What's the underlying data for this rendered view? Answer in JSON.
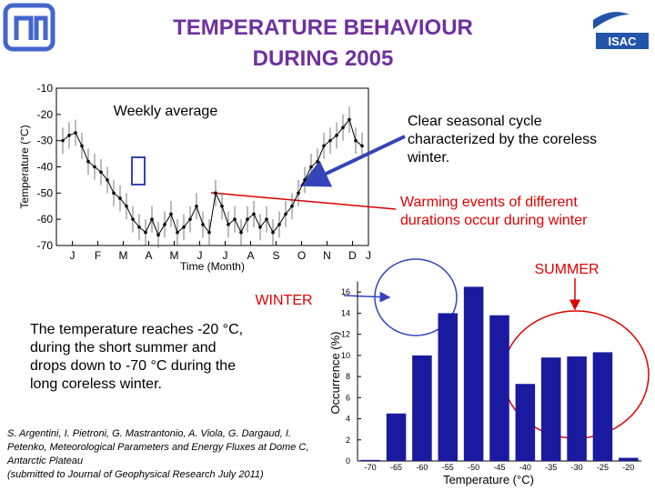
{
  "title": [
    "TEMPERATURE BEHAVIOUR",
    "DURING 2005"
  ],
  "logo_text": "ISAC",
  "note_cycle": [
    "Clear seasonal cycle",
    "characterized by the coreless",
    "winter."
  ],
  "note_warming": [
    "Warming events of different",
    "durations occur during winter"
  ],
  "label_summer": "SUMMER",
  "label_winter": "WINTER",
  "paragraph": [
    "The temperature reaches -20 °C,",
    "during the short summer and",
    "drops down to -70 °C during the",
    "long coreless winter."
  ],
  "citation": [
    "S. Argentini, I. Pietroni, G. Mastrantonio, A. Viola, G. Dargaud, I.",
    "Petenko, Meteorological Parameters and Energy Fluxes at Dome C,",
    "Antarctic Plateau",
    "(submitted to Journal of Geophysical Research July 2011)"
  ],
  "chart_data": [
    {
      "type": "line",
      "y_label": "Temperature (°C)",
      "x_label": "Time (Month)",
      "annotation": "Weekly average",
      "color": "#000000",
      "x": [
        1,
        2,
        3,
        4,
        5,
        6,
        7,
        8,
        9,
        10,
        11,
        12,
        13,
        14,
        15,
        16,
        17,
        18,
        19,
        20,
        21,
        22,
        23,
        24,
        25,
        26,
        27,
        28,
        29,
        30,
        31,
        32,
        33,
        34,
        35,
        36,
        37,
        38,
        39,
        40,
        41,
        42,
        43,
        44,
        45,
        46,
        47,
        48
      ],
      "values": [
        -30,
        -28,
        -27,
        -32,
        -38,
        -40,
        -42,
        -45,
        -50,
        -52,
        -55,
        -60,
        -63,
        -65,
        -60,
        -66,
        -62,
        -58,
        -65,
        -63,
        -60,
        -55,
        -62,
        -65,
        -50,
        -55,
        -62,
        -60,
        -65,
        -60,
        -58,
        -63,
        -60,
        -65,
        -62,
        -58,
        -55,
        -50,
        -45,
        -40,
        -38,
        -32,
        -30,
        -28,
        -25,
        -22,
        -30,
        -32
      ],
      "errors": [
        5,
        5,
        5,
        5,
        5,
        5,
        5,
        5,
        5,
        5,
        5,
        5,
        5,
        5,
        5,
        5,
        5,
        5,
        5,
        5,
        5,
        5,
        5,
        5,
        5,
        5,
        5,
        5,
        5,
        5,
        5,
        5,
        5,
        5,
        5,
        5,
        5,
        5,
        5,
        5,
        5,
        5,
        5,
        5,
        5,
        5,
        5,
        5
      ],
      "xlim": [
        0,
        49
      ],
      "xticks": [
        {
          "value": 2.5,
          "label": "J"
        },
        {
          "value": 6.5,
          "label": "F"
        },
        {
          "value": 10.5,
          "label": "M"
        },
        {
          "value": 14.5,
          "label": "A"
        },
        {
          "value": 18.5,
          "label": "M"
        },
        {
          "value": 22.5,
          "label": "J"
        },
        {
          "value": 26.5,
          "label": "J"
        },
        {
          "value": 30.5,
          "label": "A"
        },
        {
          "value": 34.5,
          "label": "S"
        },
        {
          "value": 38.5,
          "label": "O"
        },
        {
          "value": 42.5,
          "label": "N"
        },
        {
          "value": 46.5,
          "label": "D"
        },
        {
          "value": 49,
          "label": "J"
        }
      ],
      "ylim": [
        -70,
        -10
      ],
      "yticks": [
        -70,
        -60,
        -50,
        -40,
        -30,
        -20,
        -10
      ]
    },
    {
      "type": "bar",
      "y_label": "Occurrence (%)",
      "x_label": "Temperature (°C)",
      "color": "#1a1aa0",
      "categories": [
        "-70",
        "-65",
        "-60",
        "-55",
        "-50",
        "-45",
        "-40",
        "-35",
        "-30",
        "-25",
        "-20"
      ],
      "values": [
        0.1,
        4.5,
        10,
        14,
        16.5,
        13.8,
        7.3,
        9.8,
        9.9,
        10.3,
        0.3
      ],
      "ylim": [
        0,
        17
      ],
      "yticks": [
        0,
        2,
        4,
        6,
        8,
        10,
        12,
        14,
        16
      ]
    }
  ]
}
